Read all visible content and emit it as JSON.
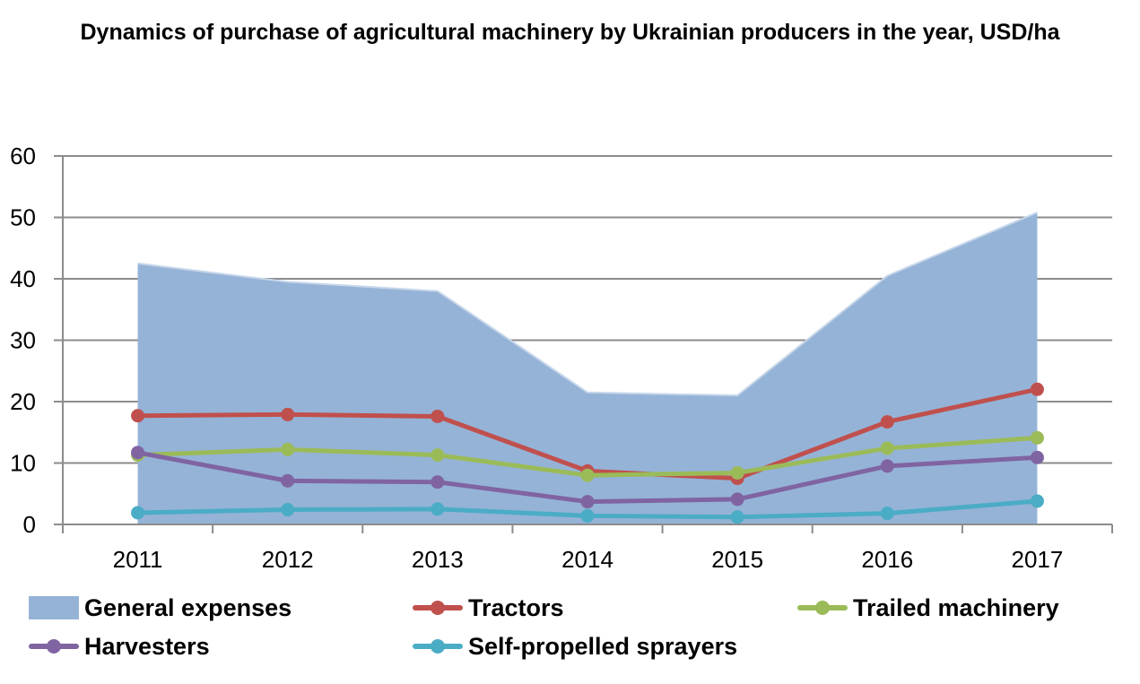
{
  "chart_data": {
    "type": "line",
    "title": "Dynamics of purchase of agricultural machinery by Ukrainian producers in the year, USD/ha",
    "categories": [
      "2011",
      "2012",
      "2013",
      "2014",
      "2015",
      "2016",
      "2017"
    ],
    "ylim": [
      0,
      60
    ],
    "yticks": [
      "0",
      "10",
      "20",
      "30",
      "40",
      "50",
      "60"
    ],
    "grid": true,
    "legend_position": "bottom",
    "series": [
      {
        "name": "General expenses",
        "kind": "area",
        "color": "#95b3d7",
        "values": [
          42.5,
          39.5,
          38.0,
          21.5,
          21.0,
          40.5,
          50.8
        ]
      },
      {
        "name": "Tractors",
        "kind": "line",
        "color": "#c0504d",
        "values": [
          17.7,
          17.9,
          17.6,
          8.7,
          7.5,
          16.7,
          22.0
        ]
      },
      {
        "name": "Trailed machinery",
        "kind": "line",
        "color": "#9bbb59",
        "values": [
          11.3,
          12.2,
          11.3,
          8.0,
          8.4,
          12.4,
          14.1
        ]
      },
      {
        "name": "Harvesters",
        "kind": "line",
        "color": "#8064a2",
        "values": [
          11.7,
          7.1,
          6.9,
          3.7,
          4.1,
          9.5,
          10.9
        ]
      },
      {
        "name": "Self-propelled sprayers",
        "kind": "line",
        "color": "#4bacc6",
        "values": [
          1.9,
          2.4,
          2.5,
          1.4,
          1.2,
          1.8,
          3.8
        ]
      }
    ]
  }
}
